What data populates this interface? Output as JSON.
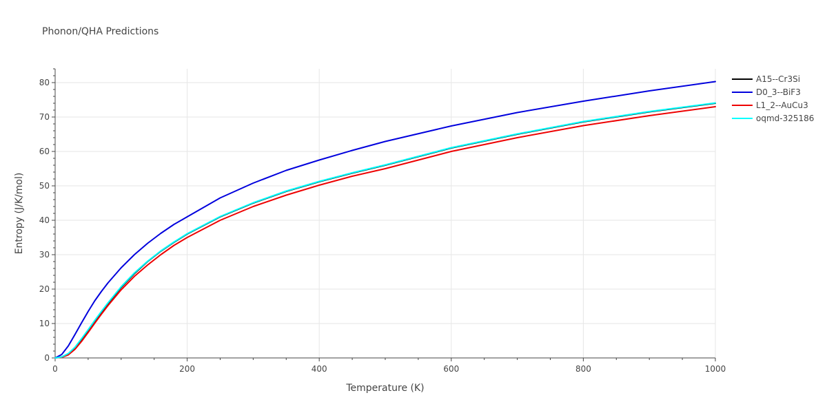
{
  "chart_data": {
    "type": "line",
    "title": "Phonon/QHA Predictions",
    "xlabel": "Temperature (K)",
    "ylabel": "Entropy (J/K/mol)",
    "xlim": [
      0,
      1000
    ],
    "ylim": [
      0,
      84
    ],
    "x_ticks": [
      0,
      200,
      400,
      600,
      800,
      1000
    ],
    "y_ticks": [
      0,
      10,
      20,
      30,
      40,
      50,
      60,
      70,
      80
    ],
    "grid": true,
    "legend_position": "top-right",
    "series": [
      {
        "name": "A15--Cr3Si",
        "color": "#000000",
        "x": [
          0,
          10,
          20,
          30,
          40,
          50,
          60,
          70,
          80,
          100,
          120,
          140,
          160,
          180,
          200,
          250,
          300,
          350,
          400,
          450,
          500,
          600,
          700,
          800,
          900,
          1000
        ],
        "y": [
          0,
          0.3,
          1.2,
          3.0,
          5.4,
          8.0,
          10.7,
          13.3,
          15.8,
          20.5,
          24.5,
          28.0,
          31.0,
          33.6,
          36.0,
          41.0,
          45.0,
          48.4,
          51.2,
          53.7,
          56.0,
          61.0,
          65.0,
          68.6,
          71.5,
          74.0
        ]
      },
      {
        "name": "D0_3--BiF3",
        "color": "#0000dd",
        "x": [
          0,
          10,
          20,
          30,
          40,
          50,
          60,
          70,
          80,
          100,
          120,
          140,
          160,
          180,
          200,
          250,
          300,
          350,
          400,
          450,
          500,
          600,
          700,
          800,
          900,
          1000
        ],
        "y": [
          0,
          1.0,
          3.5,
          6.8,
          10.2,
          13.5,
          16.6,
          19.3,
          21.8,
          26.2,
          30.0,
          33.3,
          36.2,
          38.8,
          41.0,
          46.5,
          50.8,
          54.5,
          57.5,
          60.3,
          62.9,
          67.4,
          71.3,
          74.6,
          77.6,
          80.3
        ]
      },
      {
        "name": "L1_2--AuCu3",
        "color": "#ee0000",
        "x": [
          0,
          10,
          20,
          30,
          40,
          50,
          60,
          70,
          80,
          100,
          120,
          140,
          160,
          180,
          200,
          250,
          300,
          350,
          400,
          450,
          500,
          600,
          700,
          800,
          900,
          1000
        ],
        "y": [
          0,
          0.2,
          0.9,
          2.5,
          4.8,
          7.4,
          10.1,
          12.7,
          15.2,
          19.8,
          23.7,
          27.0,
          30.0,
          32.7,
          35.0,
          40.0,
          44.0,
          47.3,
          50.2,
          52.8,
          55.0,
          60.0,
          64.0,
          67.5,
          70.4,
          73.0
        ]
      },
      {
        "name": "oqmd-325186",
        "color": "#00ffff",
        "x": [
          0,
          10,
          20,
          30,
          40,
          50,
          60,
          70,
          80,
          100,
          120,
          140,
          160,
          180,
          200,
          250,
          300,
          350,
          400,
          450,
          500,
          600,
          700,
          800,
          900,
          1000
        ],
        "y": [
          0,
          0.3,
          1.3,
          3.1,
          5.6,
          8.2,
          10.9,
          13.5,
          16.0,
          20.7,
          24.7,
          28.1,
          31.1,
          33.7,
          36.1,
          41.1,
          45.1,
          48.5,
          51.3,
          53.8,
          56.1,
          61.1,
          65.1,
          68.7,
          71.6,
          74.1
        ]
      }
    ]
  }
}
